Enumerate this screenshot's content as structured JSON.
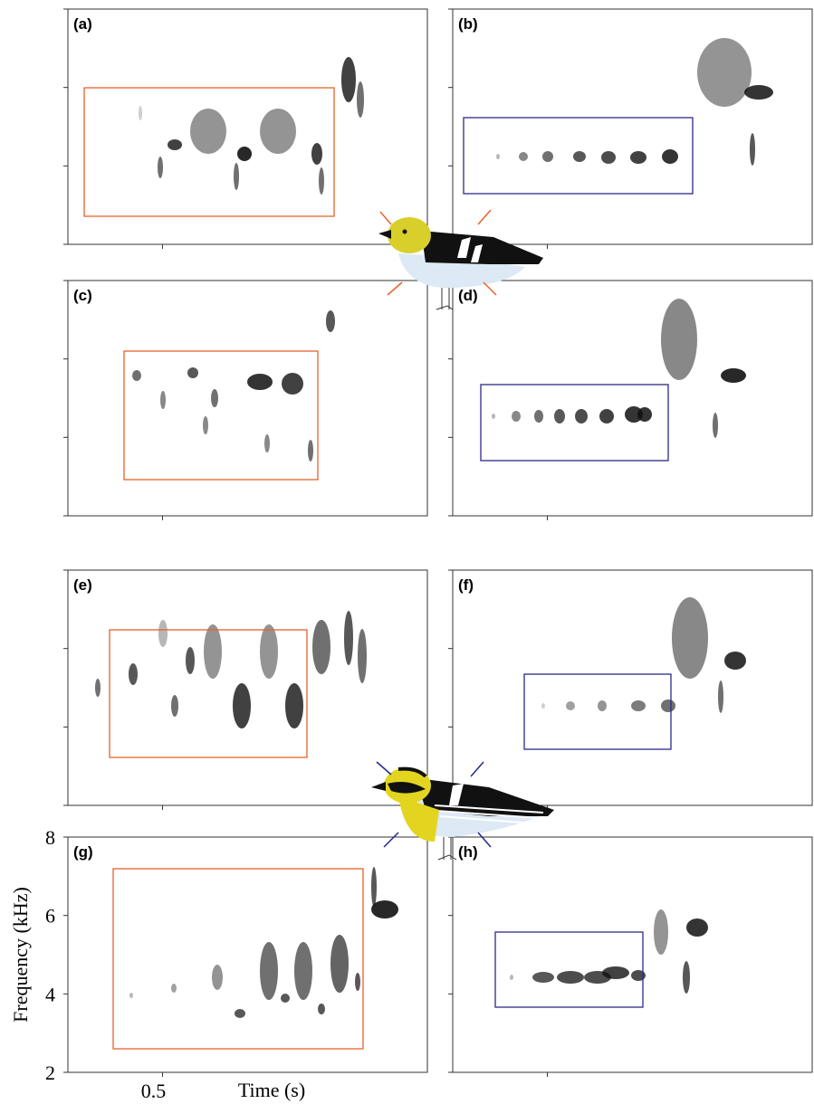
{
  "figure": {
    "panels": [
      {
        "label": "(a)"
      },
      {
        "label": "(b)"
      },
      {
        "label": "(c)"
      },
      {
        "label": "(d)"
      },
      {
        "label": "(e)"
      },
      {
        "label": "(f)"
      },
      {
        "label": "(g)"
      },
      {
        "label": "(h)"
      }
    ],
    "xlabel": "Time (s)",
    "ylabel": "Frequency (kHz)",
    "xlim": [
      0,
      1.9
    ],
    "xticks": [
      0.5
    ],
    "ylim": [
      2,
      8
    ],
    "yticks": [
      2,
      4,
      6,
      8
    ]
  }
}
